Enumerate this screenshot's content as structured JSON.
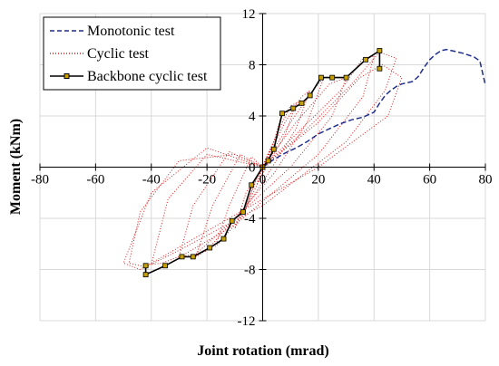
{
  "chart_data": {
    "type": "line",
    "xlabel": "Joint rotation (mrad)",
    "ylabel": "Moment (kNm)",
    "xlim": [
      -80,
      80
    ],
    "ylim": [
      -12,
      12
    ],
    "xticks": [
      "-80",
      "-60",
      "-40",
      "-20",
      "0",
      "20",
      "40",
      "60",
      "80"
    ],
    "yticks": [
      "12",
      "8",
      "4",
      "0",
      "-4",
      "-8",
      "-12"
    ],
    "grid": true,
    "legend_position": "top-left",
    "series": [
      {
        "name": "Monotonic test",
        "style": "dashed",
        "color": "#1f2f8c",
        "points": [
          [
            0,
            0
          ],
          [
            4,
            0.6
          ],
          [
            8,
            1.1
          ],
          [
            12,
            1.5
          ],
          [
            16,
            2.0
          ],
          [
            20,
            2.6
          ],
          [
            24,
            3.0
          ],
          [
            28,
            3.4
          ],
          [
            32,
            3.7
          ],
          [
            36,
            3.9
          ],
          [
            40,
            4.3
          ],
          [
            42,
            5.0
          ],
          [
            44,
            5.6
          ],
          [
            46,
            6.0
          ],
          [
            48,
            6.3
          ],
          [
            50,
            6.5
          ],
          [
            54,
            6.7
          ],
          [
            56,
            7.1
          ],
          [
            58,
            7.8
          ],
          [
            60,
            8.4
          ],
          [
            62,
            8.8
          ],
          [
            64,
            9.1
          ],
          [
            66,
            9.2
          ],
          [
            68,
            9.1
          ],
          [
            72,
            8.9
          ],
          [
            76,
            8.6
          ],
          [
            78,
            8.3
          ],
          [
            80,
            6.4
          ]
        ]
      },
      {
        "name": "Cyclic test",
        "style": "dotted",
        "color": "#d62020",
        "loops": [
          [
            [
              0,
              0
            ],
            [
              2,
              1.0
            ],
            [
              3,
              1.5
            ],
            [
              2,
              0.5
            ],
            [
              -1,
              -0.5
            ],
            [
              -2,
              -1.3
            ],
            [
              0,
              0
            ]
          ],
          [
            [
              0,
              0
            ],
            [
              5,
              2.5
            ],
            [
              7,
              4.2
            ],
            [
              4,
              2.0
            ],
            [
              -2,
              -0.8
            ],
            [
              -5,
              -2.5
            ],
            [
              -6,
              -3.2
            ],
            [
              -3,
              -1.2
            ],
            [
              0,
              0
            ]
          ],
          [
            [
              0,
              0
            ],
            [
              6,
              3.0
            ],
            [
              10,
              4.8
            ],
            [
              12,
              5.0
            ],
            [
              8,
              2.5
            ],
            [
              0,
              -0.5
            ],
            [
              -8,
              -4.0
            ],
            [
              -10,
              -4.8
            ],
            [
              -6,
              -2.0
            ],
            [
              0,
              0
            ]
          ],
          [
            [
              0,
              0
            ],
            [
              8,
              3.5
            ],
            [
              14,
              5.5
            ],
            [
              17,
              6.0
            ],
            [
              12,
              3.0
            ],
            [
              2,
              -0.5
            ],
            [
              -10,
              -4.5
            ],
            [
              -15,
              -5.8
            ],
            [
              -17,
              -6.2
            ],
            [
              -12,
              -3.0
            ],
            [
              -4,
              0.8
            ],
            [
              0,
              0
            ]
          ],
          [
            [
              0,
              0
            ],
            [
              10,
              3.5
            ],
            [
              18,
              6.0
            ],
            [
              22,
              7.0
            ],
            [
              16,
              3.5
            ],
            [
              4,
              -0.5
            ],
            [
              -14,
              -5.0
            ],
            [
              -20,
              -6.5
            ],
            [
              -24,
              -7.0
            ],
            [
              -18,
              -3.0
            ],
            [
              -8,
              1.0
            ],
            [
              0,
              0
            ]
          ],
          [
            [
              0,
              0
            ],
            [
              12,
              3.5
            ],
            [
              24,
              6.5
            ],
            [
              30,
              7.0
            ],
            [
              25,
              4.0
            ],
            [
              10,
              0
            ],
            [
              -15,
              -5.0
            ],
            [
              -24,
              -6.8
            ],
            [
              -30,
              -7.0
            ],
            [
              -25,
              -3.0
            ],
            [
              -12,
              1.2
            ],
            [
              0,
              0
            ]
          ],
          [
            [
              0,
              0
            ],
            [
              14,
              3.0
            ],
            [
              28,
              6.0
            ],
            [
              36,
              8.5
            ],
            [
              40,
              8.7
            ],
            [
              36,
              5.5
            ],
            [
              20,
              1.0
            ],
            [
              -10,
              -4.5
            ],
            [
              -28,
              -6.8
            ],
            [
              -36,
              -7.5
            ],
            [
              -40,
              -7.6
            ],
            [
              -34,
              -2.5
            ],
            [
              -20,
              1.0
            ],
            [
              0,
              0
            ]
          ],
          [
            [
              0,
              0
            ],
            [
              16,
              3.0
            ],
            [
              32,
              6.5
            ],
            [
              42,
              9.0
            ],
            [
              48,
              8.5
            ],
            [
              44,
              6.0
            ],
            [
              30,
              2.0
            ],
            [
              0,
              -3.0
            ],
            [
              -30,
              -6.5
            ],
            [
              -42,
              -7.8
            ],
            [
              -48,
              -7.5
            ],
            [
              -44,
              -3.5
            ],
            [
              -30,
              0.5
            ],
            [
              -10,
              1.0
            ],
            [
              0,
              0
            ]
          ],
          [
            [
              0,
              0
            ],
            [
              20,
              3.5
            ],
            [
              35,
              7.0
            ],
            [
              43,
              8.0
            ],
            [
              50,
              7.0
            ],
            [
              45,
              4.0
            ],
            [
              20,
              0
            ],
            [
              -20,
              -5.0
            ],
            [
              -44,
              -8.0
            ],
            [
              -50,
              -7.5
            ],
            [
              -40,
              -2.0
            ],
            [
              -20,
              1.5
            ],
            [
              0,
              0
            ]
          ]
        ]
      },
      {
        "name": "Backbone cyclic test",
        "style": "solid-markers",
        "color": "#000000",
        "points": [
          [
            42,
            7.7
          ],
          [
            42,
            9.1
          ],
          [
            37,
            8.4
          ],
          [
            30,
            7.0
          ],
          [
            25,
            7.0
          ],
          [
            21,
            7.0
          ],
          [
            17,
            5.6
          ],
          [
            14,
            5.0
          ],
          [
            11,
            4.6
          ],
          [
            7,
            4.2
          ],
          [
            4,
            1.4
          ],
          [
            2,
            0.5
          ],
          [
            0,
            0
          ],
          [
            -4,
            -1.4
          ],
          [
            -7,
            -3.5
          ],
          [
            -11,
            -4.2
          ],
          [
            -14,
            -5.6
          ],
          [
            -19,
            -6.3
          ],
          [
            -25,
            -7.0
          ],
          [
            -29,
            -7.0
          ],
          [
            -35,
            -7.7
          ],
          [
            -42,
            -8.4
          ],
          [
            -42,
            -7.7
          ]
        ]
      }
    ]
  },
  "colors": {
    "axis": "#000000",
    "grid": "#d9d9d9",
    "monotonic": "#1f2f8c",
    "cyclic": "#d62020",
    "backbone": "#000000",
    "marker_fill": "#c8a000"
  }
}
